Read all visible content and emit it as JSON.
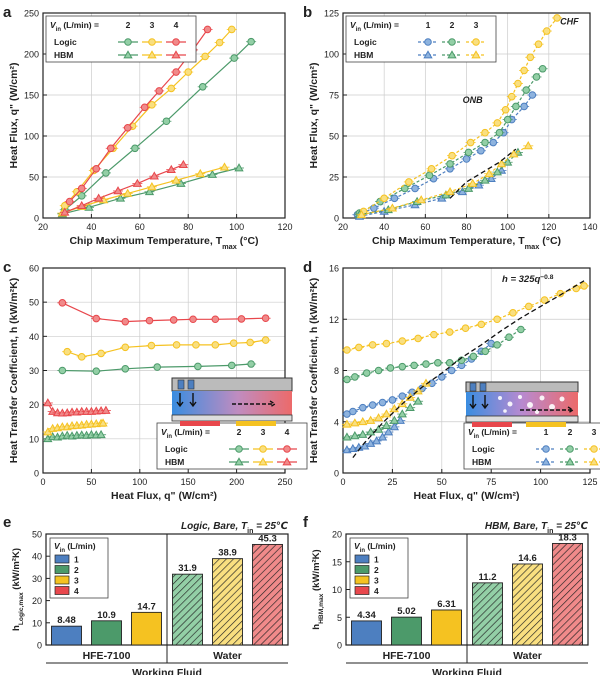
{
  "colors": {
    "red": "#e8474c",
    "yellow": "#f5c221",
    "green": "#4c9a6a",
    "blue": "#4d7fc0",
    "red_fill": "#f08a8a",
    "yellow_fill": "#f9df80",
    "green_fill": "#93cfa6",
    "blue_fill": "#8eb3de",
    "frame": "#222222",
    "grid": "#cccccc"
  },
  "legend": {
    "vin_title": "V",
    "vin_sub": "in",
    "vin_unit": " (L/min) =",
    "logic": "Logic",
    "hbm": "HBM"
  },
  "chart_data": [
    {
      "panel": "a",
      "type": "line",
      "xlabel": "Chip Maximum Temperature, T",
      "xlabel_sub": "max",
      "xlabel_unit": " (°C)",
      "ylabel": "Heat Flux, q\" (W/cm²)",
      "xlim": [
        20,
        120
      ],
      "ylim": [
        0,
        250
      ],
      "xticks": [
        20,
        40,
        60,
        80,
        100,
        120
      ],
      "yticks": [
        0,
        50,
        100,
        150,
        200,
        250
      ],
      "flow_rates": [
        "2",
        "3",
        "4"
      ],
      "series": [
        {
          "name": "Logic 2 L/min",
          "group": "Logic",
          "flow": "2",
          "marker": "circle",
          "x": [
            29,
            36,
            46,
            58,
            71,
            86,
            99,
            106
          ],
          "y": [
            10,
            27,
            55,
            85,
            118,
            160,
            195,
            215
          ]
        },
        {
          "name": "Logic 3 L/min",
          "group": "Logic",
          "flow": "3",
          "marker": "circle",
          "x": [
            29,
            34,
            41,
            49,
            57,
            65,
            73,
            80,
            87,
            93,
            98
          ],
          "y": [
            15,
            32,
            58,
            85,
            112,
            138,
            158,
            178,
            197,
            214,
            230
          ]
        },
        {
          "name": "Logic 4 L/min",
          "group": "Logic",
          "flow": "4",
          "marker": "circle",
          "x": [
            31,
            36,
            42,
            48,
            55,
            62,
            68,
            75,
            82,
            88
          ],
          "y": [
            20,
            36,
            60,
            85,
            110,
            135,
            155,
            178,
            205,
            230
          ]
        },
        {
          "name": "HBM 2 L/min",
          "group": "HBM",
          "flow": "2",
          "marker": "triangle",
          "x": [
            28,
            39,
            52,
            64,
            77,
            90,
            101
          ],
          "y": [
            5,
            13,
            24,
            32,
            42,
            53,
            61
          ]
        },
        {
          "name": "HBM 3 L/min",
          "group": "HBM",
          "flow": "3",
          "marker": "triangle",
          "x": [
            28,
            36,
            45,
            55,
            65,
            75,
            85,
            95
          ],
          "y": [
            6,
            14,
            22,
            30,
            38,
            46,
            54,
            62
          ]
        },
        {
          "name": "HBM 4 L/min",
          "group": "HBM",
          "flow": "4",
          "marker": "triangle",
          "x": [
            29,
            36,
            43,
            51,
            59,
            66,
            73,
            78
          ],
          "y": [
            7,
            15,
            24,
            33,
            42,
            51,
            59,
            65
          ]
        }
      ]
    },
    {
      "panel": "b",
      "type": "scatter",
      "xlabel": "Chip Maximum Temperature, T",
      "xlabel_sub": "max",
      "xlabel_unit": " (°C)",
      "ylabel": "Heat Flux, q\" (W/cm²)",
      "xlim": [
        20,
        140
      ],
      "ylim": [
        0,
        125
      ],
      "xticks": [
        20,
        40,
        60,
        80,
        100,
        120,
        140
      ],
      "yticks": [
        0,
        25,
        50,
        75,
        100,
        125
      ],
      "flow_rates": [
        "1",
        "2",
        "3"
      ],
      "annotations": [
        {
          "text": "CHF",
          "x": 130,
          "y": 118
        },
        {
          "text": "ONB",
          "x": 83,
          "y": 70
        }
      ],
      "fit": {
        "x": [
          72,
          80,
          88,
          96,
          104
        ],
        "y": [
          12,
          22,
          28,
          34,
          42
        ]
      },
      "series": [
        {
          "name": "Logic 1 L/min",
          "group": "Logic",
          "flow": "1",
          "marker": "circle",
          "x": [
            27,
            35,
            45,
            55,
            64,
            72,
            80,
            87,
            93,
            98,
            102,
            108,
            112
          ],
          "y": [
            2,
            6,
            12,
            18,
            24,
            30,
            36,
            41,
            46,
            52,
            60,
            68,
            75
          ]
        },
        {
          "name": "Logic 2 L/min",
          "group": "Logic",
          "flow": "2",
          "marker": "circle",
          "x": [
            28,
            38,
            50,
            62,
            72,
            81,
            89,
            96,
            100,
            104,
            109,
            114,
            117
          ],
          "y": [
            3,
            10,
            18,
            26,
            33,
            40,
            46,
            52,
            60,
            68,
            78,
            86,
            91
          ]
        },
        {
          "name": "Logic 3 L/min",
          "group": "Logic",
          "flow": "3",
          "marker": "circle",
          "x": [
            30,
            40,
            52,
            63,
            73,
            82,
            89,
            95,
            99,
            102,
            105,
            108,
            111,
            115,
            119,
            124
          ],
          "y": [
            4,
            12,
            22,
            30,
            38,
            46,
            52,
            58,
            66,
            74,
            82,
            90,
            98,
            106,
            114,
            122
          ]
        },
        {
          "name": "HBM 1 L/min",
          "group": "HBM",
          "flow": "1",
          "marker": "triangle",
          "x": [
            28,
            40,
            55,
            68,
            78,
            86,
            92,
            97
          ],
          "y": [
            1,
            4,
            8,
            12,
            16,
            20,
            24,
            29
          ]
        },
        {
          "name": "HBM 2 L/min",
          "group": "HBM",
          "flow": "2",
          "marker": "triangle",
          "x": [
            28,
            42,
            56,
            70,
            81,
            89,
            95,
            100,
            105
          ],
          "y": [
            2,
            5,
            10,
            14,
            18,
            23,
            28,
            34,
            40
          ]
        },
        {
          "name": "HBM 3 L/min",
          "group": "HBM",
          "flow": "3",
          "marker": "triangle",
          "x": [
            29,
            44,
            58,
            72,
            83,
            91,
            97,
            103,
            110
          ],
          "y": [
            2,
            6,
            11,
            16,
            21,
            27,
            33,
            39,
            44
          ]
        }
      ]
    },
    {
      "panel": "c",
      "type": "line",
      "xlabel": "Heat Flux, q\" (W/cm²)",
      "ylabel": "Heat Transfer Coefficient, h (kW/m²K)",
      "xlim": [
        0,
        250
      ],
      "ylim": [
        0,
        60
      ],
      "xticks": [
        0,
        50,
        100,
        150,
        200,
        250
      ],
      "yticks": [
        0,
        10,
        20,
        30,
        40,
        50,
        60
      ],
      "flow_rates": [
        "2",
        "3",
        "4"
      ],
      "series": [
        {
          "name": "Logic 2 L/min",
          "group": "Logic",
          "flow": "2",
          "marker": "circle",
          "x": [
            20,
            55,
            85,
            118,
            160,
            195,
            215
          ],
          "y": [
            30,
            29.8,
            30.5,
            31,
            31.2,
            31.5,
            31.9
          ]
        },
        {
          "name": "Logic 3 L/min",
          "group": "Logic",
          "flow": "3",
          "marker": "circle",
          "x": [
            25,
            40,
            60,
            85,
            112,
            138,
            158,
            178,
            197,
            214,
            230
          ],
          "y": [
            35.5,
            34,
            35,
            36.8,
            37.3,
            37.5,
            37.5,
            37.5,
            38,
            38.2,
            38.9
          ]
        },
        {
          "name": "Logic 4 L/min",
          "group": "Logic",
          "flow": "4",
          "marker": "circle",
          "x": [
            20,
            55,
            85,
            110,
            135,
            155,
            178,
            205,
            230
          ],
          "y": [
            49.8,
            45.2,
            44.3,
            44.6,
            44.8,
            45,
            45,
            45.1,
            45.3
          ]
        },
        {
          "name": "HBM 2 L/min",
          "group": "HBM",
          "flow": "2",
          "marker": "triangle",
          "x": [
            5,
            10,
            15,
            20,
            25,
            30,
            35,
            40,
            45,
            50,
            55,
            60
          ],
          "y": [
            10,
            10.6,
            10.5,
            10.8,
            11,
            10.8,
            11,
            11.1,
            11,
            11.2,
            11.1,
            11.2
          ]
        },
        {
          "name": "HBM 3 L/min",
          "group": "HBM",
          "flow": "3",
          "marker": "triangle",
          "x": [
            5,
            10,
            15,
            20,
            25,
            30,
            35,
            40,
            45,
            50,
            55,
            60,
            62
          ],
          "y": [
            12,
            13,
            13.2,
            13.5,
            13.5,
            13.8,
            13.9,
            14,
            14.2,
            14.3,
            14.4,
            14.5,
            14.6
          ]
        },
        {
          "name": "HBM 4 L/min",
          "group": "HBM",
          "flow": "4",
          "marker": "triangle",
          "x": [
            5,
            10,
            15,
            20,
            25,
            30,
            35,
            40,
            45,
            50,
            55,
            60,
            65
          ],
          "y": [
            20.5,
            18,
            17.6,
            17.5,
            17.6,
            17.8,
            17.8,
            18,
            18,
            18,
            18.1,
            18.2,
            18.3
          ]
        }
      ]
    },
    {
      "panel": "d",
      "type": "scatter",
      "xlabel": "Heat Flux, q\" (W/cm²)",
      "ylabel": "Heat Transfer Coefficient, h (kW/m²K)",
      "xlim": [
        0,
        125
      ],
      "ylim": [
        0,
        16
      ],
      "xticks": [
        0,
        25,
        50,
        75,
        100,
        125
      ],
      "yticks": [
        0,
        4,
        8,
        12,
        16
      ],
      "flow_rates": [
        "1",
        "2",
        "3"
      ],
      "fit_label": "h = 325q",
      "fit_exp": "−0.8",
      "fit": {
        "x": [
          5,
          10,
          20,
          30,
          40,
          50,
          60,
          70,
          80,
          90,
          100,
          110,
          122
        ],
        "y": [
          1.2,
          2.2,
          3.9,
          5.4,
          6.7,
          7.8,
          9.0,
          10.0,
          11.1,
          12.1,
          13.0,
          13.9,
          15.0
        ]
      },
      "series": [
        {
          "name": "Logic 1 L/min",
          "group": "Logic",
          "flow": "1",
          "marker": "circle",
          "x": [
            2,
            5,
            10,
            15,
            20,
            25,
            30,
            35,
            40,
            45,
            50,
            55,
            60,
            65,
            70,
            75
          ],
          "y": [
            4.6,
            4.8,
            5.1,
            5.3,
            5.5,
            5.7,
            6,
            6.3,
            6.6,
            7,
            7.5,
            8,
            8.4,
            8.9,
            9.5,
            10.1
          ]
        },
        {
          "name": "Logic 2 L/min",
          "group": "Logic",
          "flow": "2",
          "marker": "circle",
          "x": [
            2,
            6,
            12,
            18,
            24,
            30,
            36,
            42,
            48,
            54,
            60,
            66,
            72,
            78,
            84,
            90
          ],
          "y": [
            7.3,
            7.5,
            7.8,
            8,
            8.2,
            8.3,
            8.4,
            8.5,
            8.6,
            8.6,
            8.8,
            9.1,
            9.5,
            10,
            10.6,
            11.2
          ]
        },
        {
          "name": "Logic 3 L/min",
          "group": "Logic",
          "flow": "3",
          "marker": "circle",
          "x": [
            2,
            8,
            15,
            22,
            30,
            38,
            46,
            54,
            62,
            70,
            78,
            86,
            94,
            102,
            110,
            118,
            122
          ],
          "y": [
            9.6,
            9.8,
            10,
            10.1,
            10.3,
            10.5,
            10.8,
            11,
            11.3,
            11.6,
            12,
            12.5,
            13,
            13.5,
            14,
            14.4,
            14.6
          ]
        },
        {
          "name": "HBM 1 L/min",
          "group": "HBM",
          "flow": "1",
          "marker": "triangle",
          "x": [
            2,
            5,
            8,
            11,
            14,
            17,
            20,
            23,
            26,
            29
          ],
          "y": [
            1.8,
            1.9,
            2,
            2.1,
            2.3,
            2.5,
            2.8,
            3.2,
            3.6,
            4.1
          ]
        },
        {
          "name": "HBM 2 L/min",
          "group": "HBM",
          "flow": "2",
          "marker": "triangle",
          "x": [
            2,
            6,
            10,
            14,
            18,
            22,
            26,
            30,
            34,
            38
          ],
          "y": [
            2.8,
            2.9,
            3,
            3.2,
            3.4,
            3.7,
            4.1,
            4.6,
            5.1,
            5.6
          ]
        },
        {
          "name": "HBM 3 L/min",
          "group": "HBM",
          "flow": "3",
          "marker": "triangle",
          "x": [
            2,
            6,
            10,
            14,
            18,
            22,
            26,
            30,
            34,
            38,
            42
          ],
          "y": [
            3.8,
            3.9,
            4,
            4.1,
            4.3,
            4.6,
            5,
            5.4,
            5.9,
            6.4,
            7
          ]
        }
      ]
    },
    {
      "panel": "e",
      "type": "bar",
      "title_italic": "Logic",
      "title_rest": ", Bare, T",
      "title_sub": "in",
      "title_end": " = 25℃",
      "ylabel": "h",
      "ylabel_sub": "Logic,max",
      "ylabel_unit": " (kW/m²K)",
      "xlabel": "Working Fluid",
      "ylim": [
        0,
        50
      ],
      "yticks": [
        0,
        10,
        20,
        30,
        40,
        50
      ],
      "groups": [
        "HFE-7100",
        "Water"
      ],
      "flow_rates": [
        "1",
        "2",
        "3",
        "4"
      ],
      "legend_title": "V",
      "legend_sub": "in",
      "legend_unit": " (L/min)",
      "values": [
        [
          8.48,
          10.9,
          14.7
        ],
        [
          31.9,
          38.9,
          45.3
        ]
      ],
      "labels": [
        [
          "8.48",
          "10.9",
          "14.7"
        ],
        [
          "31.9",
          "38.9",
          "45.3"
        ]
      ],
      "flows": [
        [
          1,
          2,
          3
        ],
        [
          2,
          3,
          4
        ]
      ]
    },
    {
      "panel": "f",
      "type": "bar",
      "title_italic": "HBM",
      "title_rest": ", Bare, T",
      "title_sub": "in",
      "title_end": " = 25℃",
      "ylabel": "h",
      "ylabel_sub": "HBM,max",
      "ylabel_unit": " (kW/m²K)",
      "xlabel": "Working Fluid",
      "ylim": [
        0,
        20
      ],
      "yticks": [
        0,
        5,
        10,
        15,
        20
      ],
      "groups": [
        "HFE-7100",
        "Water"
      ],
      "flow_rates": [
        "1",
        "2",
        "3",
        "4"
      ],
      "legend_title": "V",
      "legend_sub": "in",
      "legend_unit": " (L/min)",
      "values": [
        [
          4.34,
          5.02,
          6.31
        ],
        [
          11.2,
          14.6,
          18.3
        ]
      ],
      "labels": [
        [
          "4.34",
          "5.02",
          "6.31"
        ],
        [
          "11.2",
          "14.6",
          "18.3"
        ]
      ],
      "flows": [
        [
          1,
          2,
          3
        ],
        [
          2,
          3,
          4
        ]
      ]
    }
  ]
}
